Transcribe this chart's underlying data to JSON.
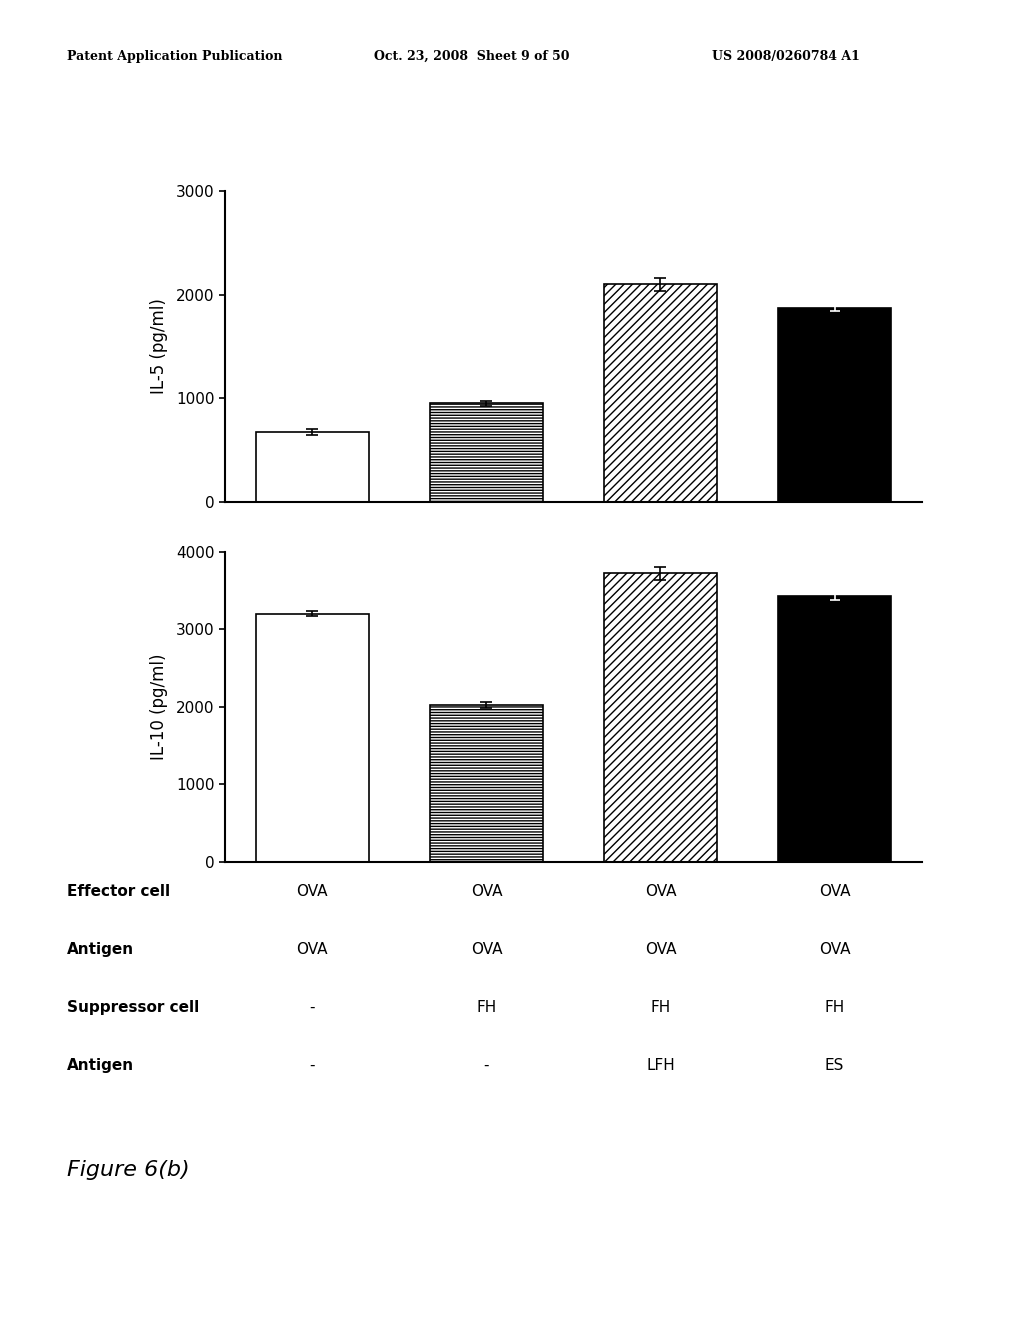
{
  "top_chart": {
    "ylabel": "IL-5 (pg/ml)",
    "ylim": [
      0,
      3000
    ],
    "yticks": [
      0,
      1000,
      2000,
      3000
    ],
    "values": [
      670,
      950,
      2100,
      1870
    ],
    "errors": [
      30,
      25,
      60,
      30
    ]
  },
  "bottom_chart": {
    "ylabel": "IL-10 (pg/ml)",
    "ylim": [
      0,
      4000
    ],
    "yticks": [
      0,
      1000,
      2000,
      3000,
      4000
    ],
    "values": [
      3200,
      2020,
      3720,
      3430
    ],
    "errors": [
      30,
      40,
      80,
      50
    ]
  },
  "table": {
    "row_labels": [
      "Effector cell",
      "Antigen",
      "Suppressor cell",
      "Antigen"
    ],
    "col_data": [
      [
        "OVA",
        "OVA",
        "-",
        "-"
      ],
      [
        "OVA",
        "OVA",
        "FH",
        "-"
      ],
      [
        "OVA",
        "OVA",
        "FH",
        "LFH"
      ],
      [
        "OVA",
        "OVA",
        "FH",
        "ES"
      ]
    ]
  },
  "figure_label": "Figure 6(b)",
  "header": [
    "Patent Application Publication",
    "Oct. 23, 2008  Sheet 9 of 50",
    "US 2008/0260784 A1"
  ],
  "bar_positions": [
    1,
    2,
    3,
    4
  ],
  "bar_width": 0.65,
  "background_color": "#ffffff"
}
